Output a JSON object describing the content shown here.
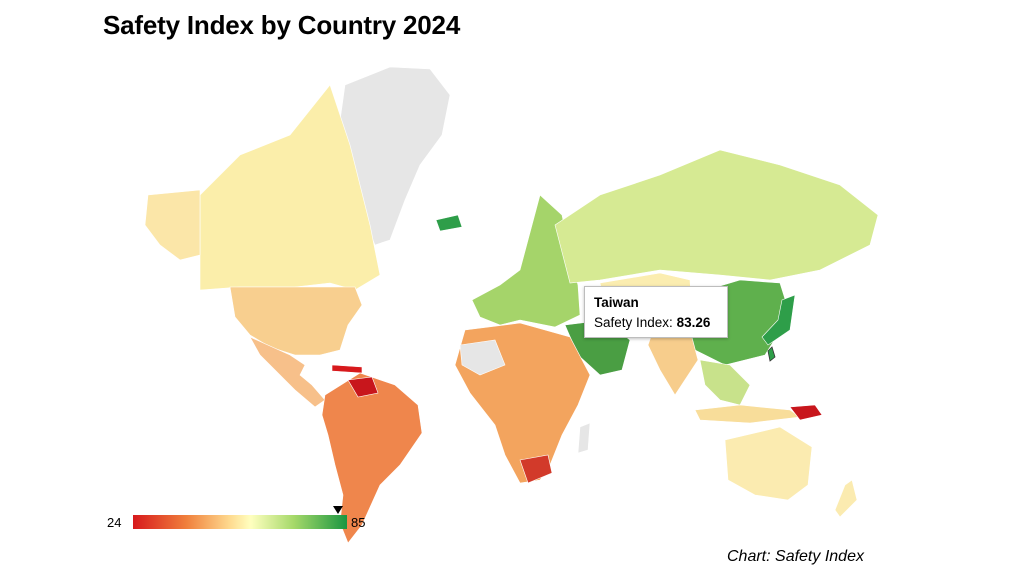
{
  "title": "Safety Index by Country 2024",
  "tooltip": {
    "country": "Taiwan",
    "label": "Safety Index: ",
    "value": "83.26"
  },
  "legend": {
    "min": "24",
    "max": "85",
    "marker_value": 83.26,
    "colors": [
      "#d7191c",
      "#f0803c",
      "#fed98e",
      "#ffffbf",
      "#a6d96a",
      "#1a9641"
    ]
  },
  "source": "Chart: Safety Index",
  "colors": {
    "no_data": "#e6e6e6",
    "very_low": "#d7191c",
    "low": "#ee7a40",
    "mid_low": "#f7b77a",
    "mid": "#fde9a6",
    "mid_high": "#d9ef8b",
    "high": "#7fc45a",
    "very_high": "#2e9e49"
  }
}
